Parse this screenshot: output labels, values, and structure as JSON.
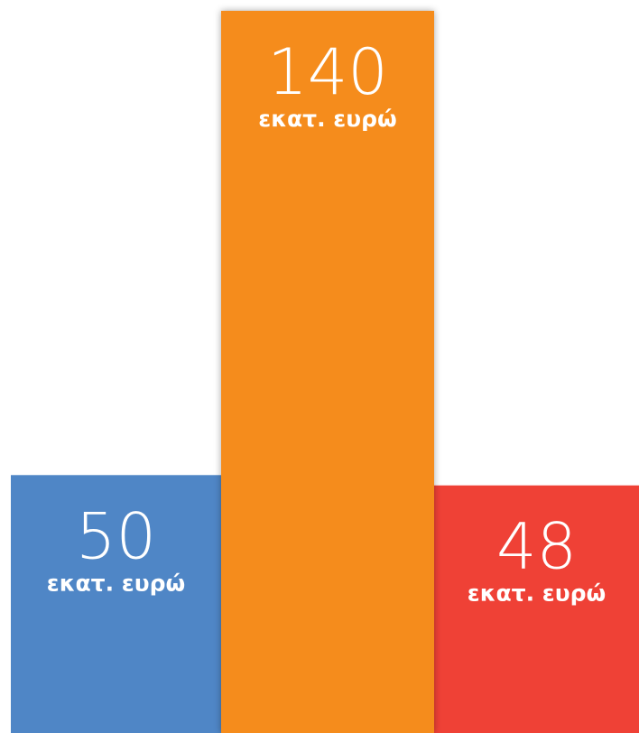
{
  "chart_data": {
    "type": "bar",
    "values": [
      50,
      140,
      48
    ],
    "colors": [
      "#4f86c6",
      "#f58c1f",
      "#ef4136"
    ],
    "unit": "εκατ. ευρώ"
  }
}
